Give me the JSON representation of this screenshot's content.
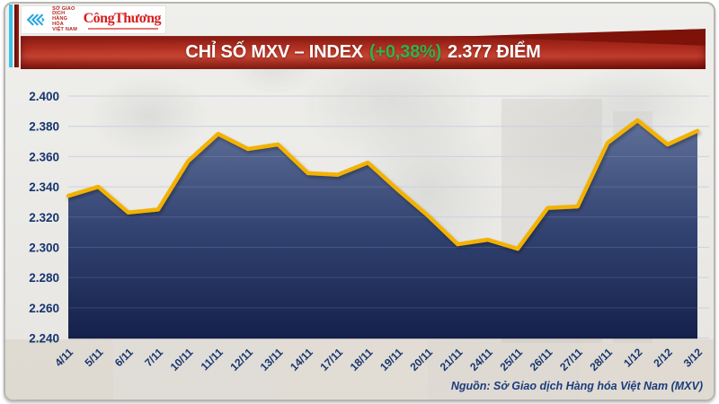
{
  "header": {
    "logo": {
      "org_line1": "SỞ GIAO DỊCH",
      "org_line2": "HÀNG HÓA",
      "org_line3": "VIỆT NAM",
      "newspaper": "CôngThương"
    }
  },
  "banner": {
    "title": "CHỈ SỐ MXV – INDEX",
    "change": "(+0,38%)",
    "value": "2.377 ĐIỂM",
    "bg_color": "#ae2b1e",
    "change_color": "#2fb24c"
  },
  "footer": {
    "source": "Nguồn: Sở Giao dịch Hàng hóa Việt Nam (MXV)"
  },
  "chart_data": {
    "type": "area",
    "title": "CHỈ SỐ MXV – INDEX (+0,38%) 2.377 ĐIỂM",
    "xlabel": "",
    "ylabel": "",
    "x_labels": [
      "4/11",
      "5/11",
      "6/11",
      "7/11",
      "10/11",
      "11/11",
      "12/11",
      "13/11",
      "14/11",
      "17/11",
      "18/11",
      "19/11",
      "20/11",
      "21/11",
      "24/11",
      "25/11",
      "26/11",
      "27/11",
      "28/11",
      "1/12",
      "2/12",
      "3/12"
    ],
    "values": [
      2334,
      2340,
      2323,
      2325,
      2357,
      2375,
      2365,
      2368,
      2349,
      2348,
      2356,
      2338,
      2321,
      2302,
      2305,
      2299,
      2326,
      2327,
      2369,
      2384,
      2368,
      2377
    ],
    "y_tick_labels": [
      "2.400",
      "2.380",
      "2.360",
      "2.340",
      "2.320",
      "2.300",
      "2.280",
      "2.260",
      "2.240"
    ],
    "y_tick_values": [
      2400,
      2380,
      2360,
      2340,
      2320,
      2300,
      2280,
      2260,
      2240
    ],
    "ylim": [
      2240,
      2400
    ],
    "grid": true,
    "legend": false,
    "line_color": "#f3b200",
    "area_top_color": "#5f7099",
    "area_bottom_color": "#15214b",
    "grid_color": "#c9cfdb",
    "label_color": "#16356e"
  }
}
